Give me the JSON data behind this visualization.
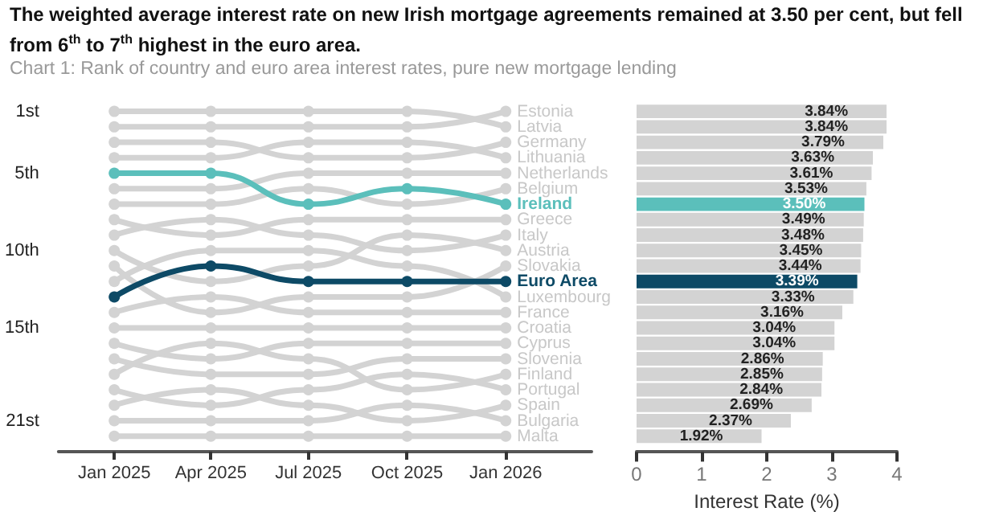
{
  "chart_data": [
    {
      "type": "line",
      "title": "The weighted average interest rate on new Irish mortgage agreements remained at 3.50 per cent, but fell from 6$^{th}$ to 7$^{th}$ highest in the euro area.",
      "subtitle": "Chart 1: Rank of country and euro area interest rates, pure new mortgage lending",
      "x": [
        "2025-01",
        "2025-04",
        "2025-07",
        "2025-10",
        "2026-01"
      ],
      "xlim": [
        "2024-11-10",
        "2026-03-22"
      ],
      "xticks": [
        {
          "value": "2025-01",
          "label": "Jan 2025"
        },
        {
          "value": "2025-04",
          "label": "Apr 2025"
        },
        {
          "value": "2025-07",
          "label": "Jul 2025"
        },
        {
          "value": "2025-10",
          "label": "Oct 2025"
        },
        {
          "value": "2026-01",
          "label": "Jan 2026"
        }
      ],
      "ylim": [
        23,
        1
      ],
      "yticks": [
        {
          "value": 1,
          "label": "1st"
        },
        {
          "value": 5,
          "label": "5th"
        },
        {
          "value": 10,
          "label": "10th"
        },
        {
          "value": 15,
          "label": "15th"
        },
        {
          "value": 21,
          "label": "21st"
        }
      ],
      "marker": "circle",
      "grid": false,
      "legend": false,
      "series": [
        {
          "name": "Estonia",
          "color": "#d3d3d3",
          "values": [
            2,
            2,
            2,
            2,
            1
          ]
        },
        {
          "name": "Latvia",
          "color": "#d3d3d3",
          "values": [
            1,
            1,
            1,
            1,
            2
          ]
        },
        {
          "name": "Germany",
          "color": "#d3d3d3",
          "values": [
            3,
            3,
            4,
            4,
            3
          ]
        },
        {
          "name": "Lithuania",
          "color": "#d3d3d3",
          "values": [
            4,
            4,
            3,
            3,
            4
          ]
        },
        {
          "name": "Netherlands",
          "color": "#d3d3d3",
          "values": [
            6,
            6,
            5,
            5,
            5
          ]
        },
        {
          "name": "Belgium",
          "color": "#d3d3d3",
          "values": [
            7,
            7,
            6,
            7,
            6
          ]
        },
        {
          "name": "Greece",
          "color": "#d3d3d3",
          "values": [
            8,
            9,
            8,
            8,
            8
          ]
        },
        {
          "name": "Italy",
          "color": "#d3d3d3",
          "values": [
            9,
            8,
            9,
            10,
            9
          ]
        },
        {
          "name": "Austria",
          "color": "#d3d3d3",
          "values": [
            10,
            12,
            11,
            9,
            10
          ]
        },
        {
          "name": "Slovakia",
          "color": "#d3d3d3",
          "values": [
            11,
            14,
            13,
            13,
            11
          ]
        },
        {
          "name": "Luxembourg",
          "color": "#d3d3d3",
          "values": [
            12,
            10,
            10,
            11,
            13
          ]
        },
        {
          "name": "France",
          "color": "#d3d3d3",
          "values": [
            14,
            13,
            14,
            14,
            14
          ]
        },
        {
          "name": "Croatia",
          "color": "#d3d3d3",
          "values": [
            15,
            15,
            15,
            15,
            15
          ]
        },
        {
          "name": "Cyprus",
          "color": "#d3d3d3",
          "values": [
            16,
            17,
            16,
            16,
            16
          ]
        },
        {
          "name": "Slovenia",
          "color": "#d3d3d3",
          "values": [
            17,
            18,
            18,
            17,
            17
          ]
        },
        {
          "name": "Finland",
          "color": "#d3d3d3",
          "values": [
            18,
            16,
            17,
            19,
            18
          ]
        },
        {
          "name": "Portugal",
          "color": "#d3d3d3",
          "values": [
            19,
            20,
            19,
            18,
            19
          ]
        },
        {
          "name": "Spain",
          "color": "#d3d3d3",
          "values": [
            20,
            19,
            20,
            21,
            20
          ]
        },
        {
          "name": "Bulgaria",
          "color": "#d3d3d3",
          "values": [
            21,
            21,
            21,
            20,
            21
          ]
        },
        {
          "name": "Malta",
          "color": "#d3d3d3",
          "values": [
            22,
            22,
            22,
            22,
            22
          ]
        },
        {
          "name": "Ireland",
          "color": "#5bbfbb",
          "values": [
            5,
            5,
            7,
            6,
            7
          ]
        },
        {
          "name": "Euro Area",
          "color": "#0d4a66",
          "values": [
            13,
            11,
            12,
            12,
            12
          ]
        }
      ]
    },
    {
      "type": "bar",
      "orientation": "horizontal",
      "xlabel": "Interest Rate (%)",
      "categories": [
        null,
        null,
        null,
        null,
        null,
        null,
        null,
        null,
        null,
        null,
        null,
        null,
        null,
        null,
        null,
        null,
        null,
        null,
        null,
        null,
        null,
        null
      ],
      "values": [
        3.84,
        3.84,
        3.79,
        3.63,
        3.61,
        3.53,
        3.5,
        3.49,
        3.48,
        3.45,
        3.44,
        3.39,
        3.33,
        3.16,
        3.04,
        3.04,
        2.86,
        2.85,
        2.84,
        2.69,
        2.37,
        1.92
      ],
      "colors": [
        "#d3d3d3",
        "#d3d3d3",
        "#d3d3d3",
        "#d3d3d3",
        "#d3d3d3",
        "#d3d3d3",
        "#5bbfbb",
        "#d3d3d3",
        "#d3d3d3",
        "#d3d3d3",
        "#d3d3d3",
        "#0d4a66",
        "#d3d3d3",
        "#d3d3d3",
        "#d3d3d3",
        "#d3d3d3",
        "#d3d3d3",
        "#d3d3d3",
        "#d3d3d3",
        "#d3d3d3",
        "#d3d3d3",
        "#d3d3d3"
      ],
      "value_labels": [
        "3.84%",
        "3.84%",
        "3.79%",
        "3.63%",
        "3.61%",
        "3.53%",
        "3.50%",
        "3.49%",
        "3.48%",
        "3.45%",
        "3.44%",
        "3.39%",
        "3.33%",
        "3.16%",
        "3.04%",
        "3.04%",
        "2.86%",
        "2.85%",
        "2.84%",
        "2.69%",
        "2.37%",
        "1.92%"
      ],
      "xlim": [
        0,
        4
      ],
      "xticks": [
        0,
        1,
        2,
        3,
        4
      ],
      "grid": false,
      "legend": false
    }
  ]
}
